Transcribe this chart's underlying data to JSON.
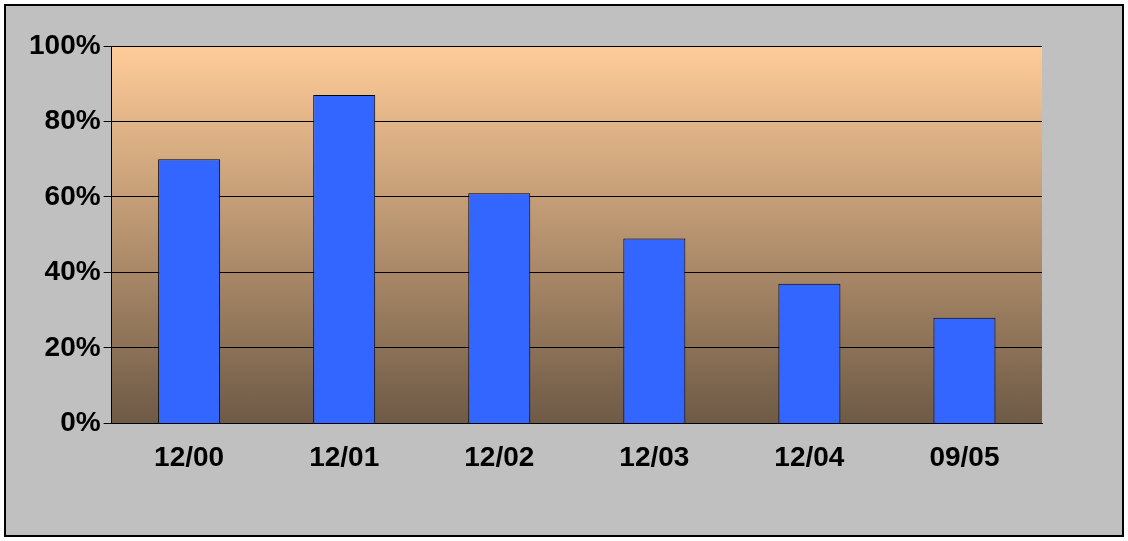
{
  "chart_data": {
    "type": "bar",
    "categories": [
      "12/00",
      "12/01",
      "12/02",
      "12/03",
      "12/04",
      "09/05"
    ],
    "values": [
      70,
      87,
      61,
      49,
      37,
      28
    ],
    "color": "#3366ff",
    "ylim": [
      0,
      100
    ],
    "yticks": [
      {
        "value": 0,
        "label": "0%"
      },
      {
        "value": 20,
        "label": "20%"
      },
      {
        "value": 40,
        "label": "40%"
      },
      {
        "value": 60,
        "label": "60%"
      },
      {
        "value": 80,
        "label": "80%"
      },
      {
        "value": 100,
        "label": "100%"
      }
    ],
    "grid": "y"
  }
}
